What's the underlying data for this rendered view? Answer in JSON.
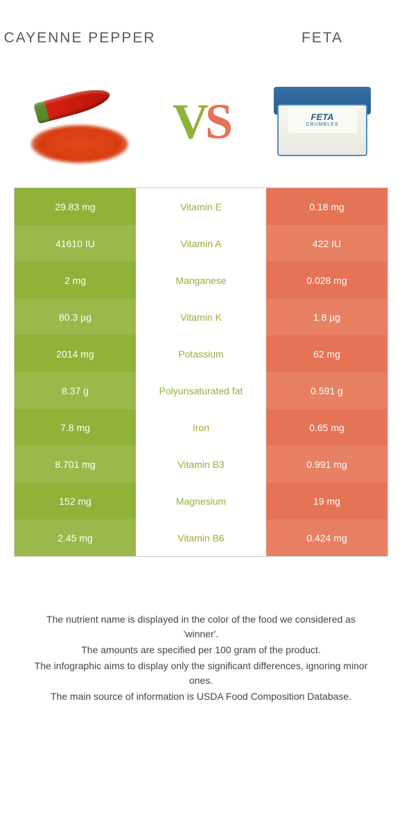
{
  "header": {
    "left_title": "CAYENNE PEPPER",
    "right_title": "FETA"
  },
  "vs": {
    "v": "V",
    "s": "S"
  },
  "feta_label": {
    "brand": "FETA",
    "sub": "CRUMBLES"
  },
  "colors": {
    "green": "#8fb239",
    "green_alt": "#99b94a",
    "orange": "#e57355",
    "orange_alt": "#e88064",
    "text_dark": "#444444"
  },
  "table": {
    "rows": [
      {
        "left": "29.83 mg",
        "nutrient": "Vitamin E",
        "right": "0.18 mg",
        "winner": "left"
      },
      {
        "left": "41610 IU",
        "nutrient": "Vitamin A",
        "right": "422 IU",
        "winner": "left"
      },
      {
        "left": "2 mg",
        "nutrient": "Manganese",
        "right": "0.028 mg",
        "winner": "left"
      },
      {
        "left": "80.3 µg",
        "nutrient": "Vitamin K",
        "right": "1.8 µg",
        "winner": "left"
      },
      {
        "left": "2014 mg",
        "nutrient": "Potassium",
        "right": "62 mg",
        "winner": "left"
      },
      {
        "left": "8.37 g",
        "nutrient": "Polyunsaturated fat",
        "right": "0.591 g",
        "winner": "left"
      },
      {
        "left": "7.8 mg",
        "nutrient": "Iron",
        "right": "0.65 mg",
        "winner": "left"
      },
      {
        "left": "8.701 mg",
        "nutrient": "Vitamin B3",
        "right": "0.991 mg",
        "winner": "left"
      },
      {
        "left": "152 mg",
        "nutrient": "Magnesium",
        "right": "19 mg",
        "winner": "left"
      },
      {
        "left": "2.45 mg",
        "nutrient": "Vitamin B6",
        "right": "0.424 mg",
        "winner": "left"
      }
    ]
  },
  "footer": {
    "line1": "The nutrient name is displayed in the color of the food we considered as 'winner'.",
    "line2": "The amounts are specified per 100 gram of the product.",
    "line3": "The infographic aims to display only the significant differences, ignoring minor ones.",
    "line4": "The main source of information is USDA Food Composition Database."
  }
}
